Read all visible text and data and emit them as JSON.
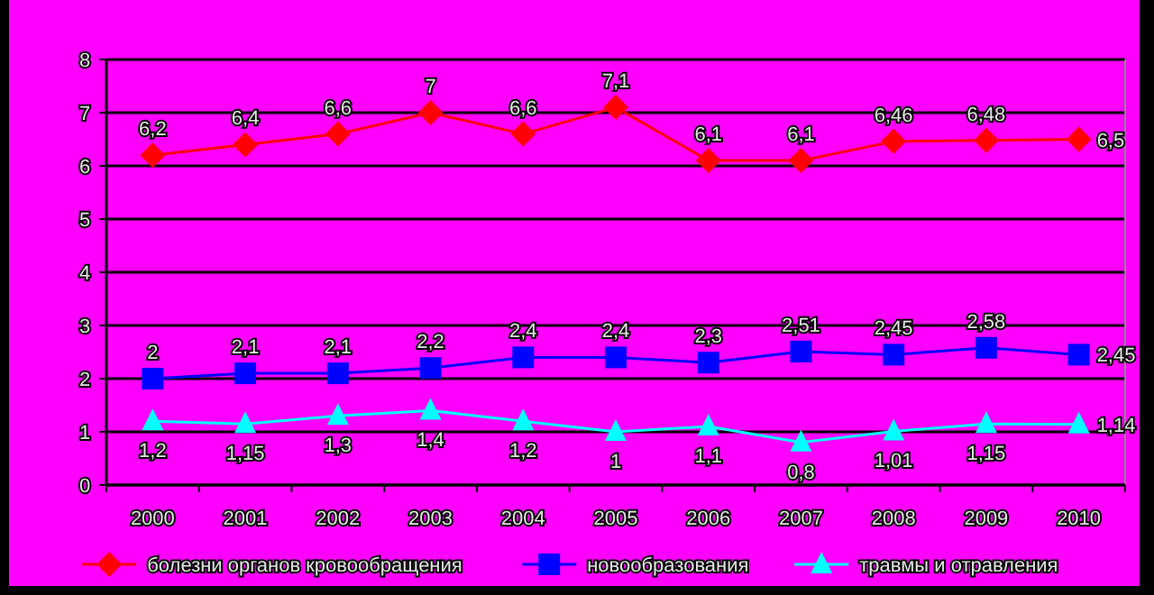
{
  "chart_data": {
    "type": "line",
    "categories": [
      "2000",
      "2001",
      "2002",
      "2003",
      "2004",
      "2005",
      "2006",
      "2007",
      "2008",
      "2009",
      "2010"
    ],
    "series": [
      {
        "name": "болезни органов кровообращения",
        "color": "#ff0000",
        "marker": "diamond",
        "values": [
          6.2,
          6.4,
          6.6,
          7,
          6.6,
          7.1,
          6.1,
          6.1,
          6.46,
          6.48,
          6.5
        ],
        "value_labels": [
          "6,2",
          "6,4",
          "6,6",
          "7",
          "6,6",
          "7,1",
          "6,1",
          "6,1",
          "6,46",
          "6,48",
          "6,5"
        ]
      },
      {
        "name": "новообразования",
        "color": "#0000ff",
        "marker": "square",
        "values": [
          2,
          2.1,
          2.1,
          2.2,
          2.4,
          2.4,
          2.3,
          2.51,
          2.45,
          2.58,
          2.45
        ],
        "value_labels": [
          "2",
          "2,1",
          "2,1",
          "2,2",
          "2,4",
          "2,4",
          "2,3",
          "2,51",
          "2,45",
          "2,58",
          "2,45"
        ]
      },
      {
        "name": "травмы и отравления",
        "color": "#00ffff",
        "marker": "triangle",
        "values": [
          1.2,
          1.15,
          1.3,
          1.4,
          1.2,
          1,
          1.1,
          0.8,
          1.01,
          1.15,
          1.14
        ],
        "value_labels": [
          "1,2",
          "1,15",
          "1,3",
          "1,4",
          "1,2",
          "1",
          "1,1",
          "0,8",
          "1,01",
          "1,15",
          "1,14"
        ]
      }
    ],
    "ylim": [
      0,
      8
    ],
    "yticks": [
      0,
      1,
      2,
      3,
      4,
      5,
      6,
      7,
      8
    ],
    "grid": "y",
    "legend": "bottom"
  }
}
